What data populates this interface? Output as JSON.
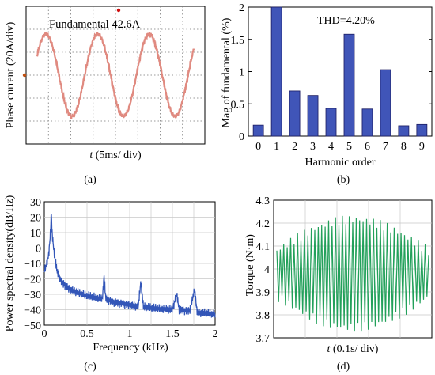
{
  "panels": {
    "a": {
      "caption": "(a)",
      "annotation": "Fundamental 42.6A",
      "ylabel": "Phase current (20A/div)",
      "xlabel_italic": "t",
      "xlabel_rest": " (5ms/ div)"
    },
    "b": {
      "caption": "(b)",
      "annotation": "THD=4.20%",
      "ylabel": "Mag of fundamental (%)",
      "xlabel": "Harmonic order"
    },
    "c": {
      "caption": "(c)",
      "ylabel": "Power spectral density(dB/Hz)",
      "xlabel": "Frequency (kHz)"
    },
    "d": {
      "caption": "(d)",
      "ylabel": "Torque (N·m)",
      "xlabel_italic": "t",
      "xlabel_rest": " (0.1s/ div)"
    }
  },
  "chart_data": [
    {
      "panel": "a",
      "type": "line",
      "title": "",
      "xlabel": "t (5ms/ div)",
      "ylabel": "Phase current (20A/div)",
      "annotations": [
        "Fundamental 42.6A"
      ],
      "series": [
        {
          "shape": "sine",
          "amplitude_A": 42.6,
          "cycles_shown": 3
        }
      ],
      "grid": "dotted oscilloscope grid",
      "colors": {
        "trace": "#e08a80",
        "grid": "#7a7a7a"
      }
    },
    {
      "panel": "b",
      "type": "bar",
      "title": "",
      "xlabel": "Harmonic order",
      "ylabel": "Mag of fundamental (%)",
      "categories": [
        "0",
        "1",
        "2",
        "3",
        "4",
        "5",
        "6",
        "7",
        "8",
        "9"
      ],
      "values": [
        0.17,
        2.0,
        0.7,
        0.63,
        0.43,
        1.58,
        0.42,
        1.03,
        0.16,
        0.18
      ],
      "ylim": [
        0,
        2
      ],
      "yticks": [
        "0",
        "0.5",
        "1",
        "1.5",
        "2"
      ],
      "annotations": [
        "THD=4.20%"
      ],
      "grid": false,
      "colors": {
        "bar": "#4055b8"
      }
    },
    {
      "panel": "c",
      "type": "line",
      "title": "",
      "xlabel": "Frequency (kHz)",
      "ylabel": "Power spectral density(dB/Hz)",
      "xlim": [
        0,
        2
      ],
      "ylim": [
        -50,
        30
      ],
      "xticks": [
        "0",
        "0.5",
        "1",
        "1.5",
        "2"
      ],
      "yticks": [
        "30",
        "20",
        "10",
        "0",
        "−10",
        "−20",
        "−30",
        "−40",
        "−50"
      ],
      "series": [
        {
          "points": [
            [
              0,
              -15
            ],
            [
              0.02,
              -12
            ],
            [
              0.05,
              -5
            ],
            [
              0.07,
              8
            ],
            [
              0.083,
              23
            ],
            [
              0.09,
              10
            ],
            [
              0.1,
              5
            ],
            [
              0.12,
              -5
            ],
            [
              0.15,
              -15
            ],
            [
              0.2,
              -22
            ],
            [
              0.3,
              -27
            ],
            [
              0.45,
              -30
            ],
            [
              0.6,
              -32
            ],
            [
              0.68,
              -33
            ],
            [
              0.7,
              -18
            ],
            [
              0.72,
              -33
            ],
            [
              0.8,
              -35
            ],
            [
              1.0,
              -37
            ],
            [
              1.1,
              -38
            ],
            [
              1.13,
              -22
            ],
            [
              1.16,
              -38
            ],
            [
              1.3,
              -39
            ],
            [
              1.5,
              -40
            ],
            [
              1.55,
              -30
            ],
            [
              1.58,
              -40
            ],
            [
              1.7,
              -41
            ],
            [
              1.76,
              -27
            ],
            [
              1.79,
              -42
            ],
            [
              1.9,
              -42
            ],
            [
              2.0,
              -43
            ]
          ]
        }
      ],
      "grid": true,
      "colors": {
        "trace": "#3356b8"
      }
    },
    {
      "panel": "d",
      "type": "line",
      "title": "",
      "xlabel": "t (0.1s/ div)",
      "ylabel": "Torque (N·m)",
      "ylim": [
        3.7,
        4.3
      ],
      "yticks": [
        "4.3",
        "4.2",
        "4.1",
        "4",
        "3.9",
        "3.8",
        "3.7"
      ],
      "series": [
        {
          "shape": "ripple",
          "mean_Nm": 3.98,
          "ripple_peak_to_peak_min": 0.2,
          "ripple_peak_to_peak_max": 0.47
        }
      ],
      "grid": true,
      "colors": {
        "trace": "#22a05a"
      }
    }
  ]
}
